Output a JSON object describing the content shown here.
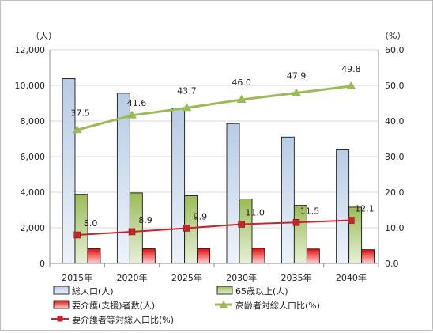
{
  "chart_data": {
    "type": "bar",
    "categories": [
      "2015年",
      "2020年",
      "2025年",
      "2030年",
      "2035年",
      "2040年"
    ],
    "left_unit": "（人）",
    "right_unit": "（%）",
    "left_axis": {
      "min": 0,
      "max": 12000,
      "step": 2000,
      "tick_labels": [
        "0",
        "2,000",
        "4,000",
        "6,000",
        "8,000",
        "10,000",
        "12,000"
      ]
    },
    "right_axis": {
      "min": 0,
      "max": 60,
      "step": 10,
      "tick_labels": [
        "0.0",
        "10.0",
        "20.0",
        "30.0",
        "40.0",
        "50.0",
        "60.0"
      ]
    },
    "grid": true,
    "legend_position": "bottom",
    "series": [
      {
        "name": "総人口(人)",
        "type": "bar",
        "axis": "left",
        "color": "#b8cce4",
        "values": [
          10380,
          9560,
          8700,
          7860,
          7100,
          6380
        ]
      },
      {
        "name": "65歳以上(人)",
        "type": "bar",
        "axis": "left",
        "color": "#9bbb59",
        "values": [
          3880,
          3960,
          3800,
          3620,
          3260,
          3160
        ]
      },
      {
        "name": "要介護(支援)者数(人)",
        "type": "bar",
        "axis": "left",
        "color": "#e01010",
        "values": [
          820,
          820,
          820,
          850,
          810,
          770
        ]
      },
      {
        "name": "高齢者対総人口比(%)",
        "type": "line",
        "axis": "right",
        "color": "#9bbb59",
        "marker": "triangle",
        "values": [
          37.5,
          41.6,
          43.7,
          46.0,
          47.9,
          49.8
        ],
        "labels": [
          "37.5",
          "41.6",
          "43.7",
          "46.0",
          "47.9",
          "49.8"
        ]
      },
      {
        "name": "要介護者等対総人口比(%)",
        "type": "line",
        "axis": "right",
        "color": "#c0282e",
        "marker": "square",
        "values": [
          8.0,
          8.9,
          9.9,
          11.0,
          11.5,
          12.1
        ],
        "labels": [
          "8.0",
          "8.9",
          "9.9",
          "11.0",
          "11.5",
          "12.1"
        ]
      }
    ]
  }
}
